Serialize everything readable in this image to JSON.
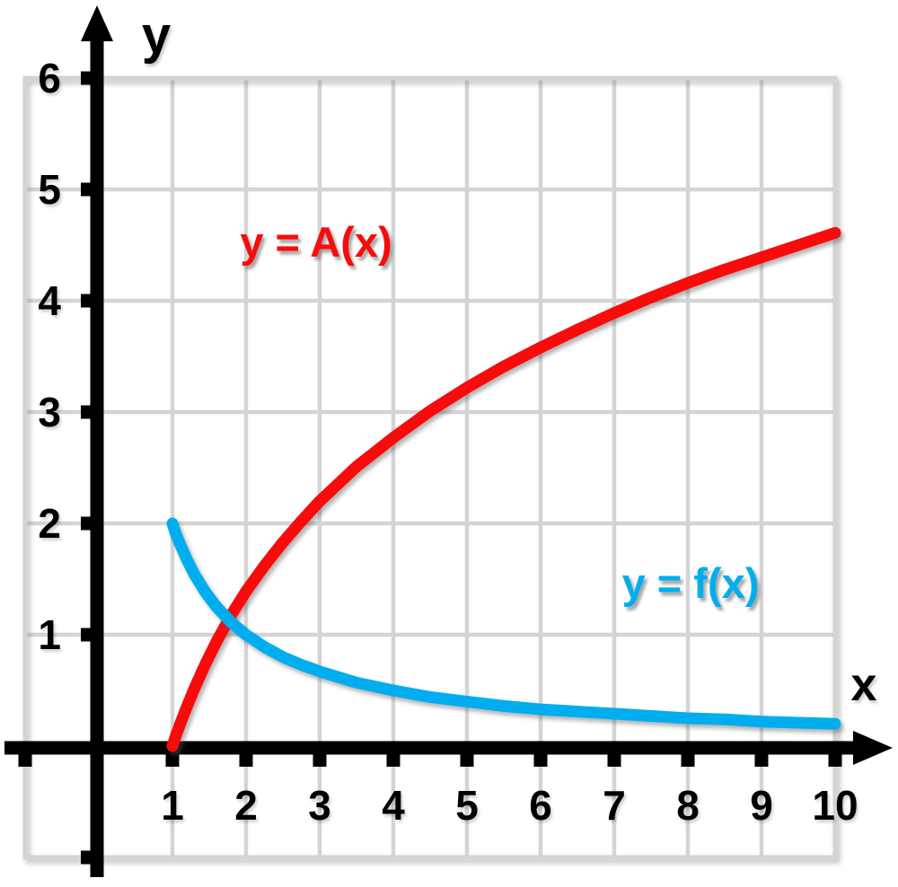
{
  "chart_data": {
    "type": "line",
    "title": "",
    "xlabel": "x",
    "ylabel": "y",
    "x_ticks": [
      1,
      2,
      3,
      4,
      5,
      6,
      7,
      8,
      9,
      10
    ],
    "y_ticks": [
      1,
      2,
      3,
      4,
      5,
      6
    ],
    "unlabeled_ticks": {
      "x": [
        -1
      ],
      "y": [
        -1
      ]
    },
    "xlim": [
      -1,
      10
    ],
    "ylim": [
      -1,
      6
    ],
    "grid": "on",
    "legend_position": "none",
    "colors": {
      "grid": "#D4D4D4",
      "axis": "#000000",
      "background": "#FFFFFF",
      "series_A": "#F90B0B",
      "series_f": "#00AEEF"
    },
    "series": [
      {
        "name": "A",
        "label": "y = A(x)",
        "color": "#F90B0B",
        "x": [
          1,
          1.05,
          1.1,
          1.2,
          1.3,
          1.45,
          1.6,
          1.8,
          2,
          2.25,
          2.5,
          2.75,
          3,
          3.5,
          4,
          4.5,
          5,
          5.5,
          6,
          6.5,
          7,
          7.5,
          8,
          8.5,
          9,
          9.5,
          10
        ],
        "y": [
          0,
          0.1,
          0.19,
          0.36,
          0.52,
          0.74,
          0.94,
          1.18,
          1.39,
          1.62,
          1.83,
          2.02,
          2.2,
          2.51,
          2.77,
          3.01,
          3.22,
          3.41,
          3.58,
          3.74,
          3.89,
          4.03,
          4.16,
          4.28,
          4.39,
          4.5,
          4.61
        ]
      },
      {
        "name": "f",
        "label": "y = f(x)",
        "color": "#00AEEF",
        "x": [
          1,
          1.05,
          1.1,
          1.2,
          1.3,
          1.45,
          1.6,
          1.8,
          2,
          2.25,
          2.5,
          2.75,
          3,
          3.5,
          4,
          4.5,
          5,
          5.5,
          6,
          6.5,
          7,
          7.5,
          8,
          8.5,
          9,
          9.5,
          10
        ],
        "y": [
          2,
          1.9,
          1.82,
          1.67,
          1.54,
          1.38,
          1.25,
          1.11,
          1.0,
          0.89,
          0.8,
          0.73,
          0.67,
          0.57,
          0.5,
          0.44,
          0.4,
          0.36,
          0.33,
          0.31,
          0.29,
          0.27,
          0.25,
          0.24,
          0.22,
          0.21,
          0.2
        ]
      }
    ]
  }
}
